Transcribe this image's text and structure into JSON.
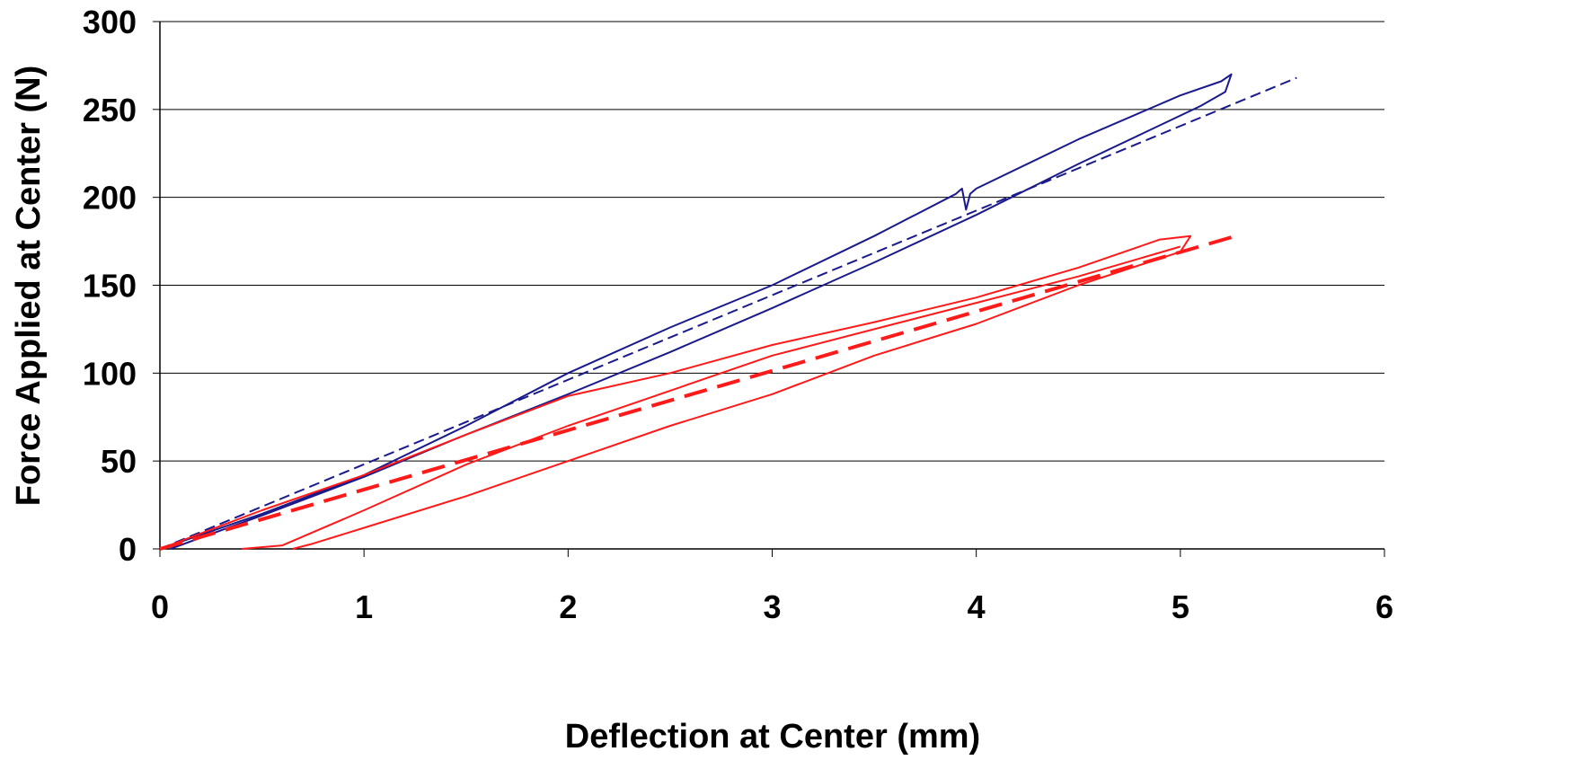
{
  "chart_data": {
    "type": "line",
    "title": "",
    "xlabel": "Deflection at Center (mm)",
    "ylabel": "Force Applied at Center (N)",
    "xlim": [
      0,
      6
    ],
    "ylim": [
      0,
      300
    ],
    "x_ticks": [
      "0",
      "1",
      "2",
      "3",
      "4",
      "5",
      "6"
    ],
    "y_ticks": [
      "0",
      "50",
      "100",
      "150",
      "200",
      "250",
      "300"
    ],
    "grid": "horizontal",
    "legend": "none",
    "series": [
      {
        "color": "#1a1a8c",
        "style": "solid",
        "x": [
          0,
          0.5,
          1.0,
          1.5,
          2.0,
          2.5,
          3.0,
          3.5,
          3.9,
          3.93,
          3.95,
          3.97,
          4.0,
          4.5,
          5.0,
          5.2,
          5.25,
          5.22,
          5.1,
          4.5,
          4.0,
          3.5,
          3.0,
          2.5,
          2.0,
          1.5,
          1.0,
          0.5,
          0.05
        ],
        "y": [
          0,
          20,
          42,
          70,
          100,
          126,
          150,
          178,
          202,
          205,
          193,
          202,
          205,
          233,
          258,
          266,
          270,
          260,
          252,
          219,
          190,
          163,
          137,
          112,
          88,
          65,
          41,
          19,
          0
        ]
      },
      {
        "color": "#1a1a8c",
        "style": "dashed",
        "x": [
          0,
          5.57
        ],
        "y": [
          0,
          268
        ]
      },
      {
        "color": "#ff1a1a",
        "style": "solid",
        "x": [
          0,
          0.5,
          1.0,
          1.5,
          2.0,
          2.5,
          3.0,
          3.5,
          4.0,
          4.5,
          4.9,
          5.05,
          5.0,
          4.5,
          4.0,
          3.5,
          3.0,
          2.5,
          2.0,
          1.5,
          1.0,
          0.75,
          0.65
        ],
        "y": [
          0,
          22,
          42,
          65,
          87,
          100,
          116,
          129,
          143,
          160,
          176,
          178,
          169,
          150,
          128,
          110,
          88,
          70,
          50,
          30,
          12,
          3,
          0
        ]
      },
      {
        "color": "#ff1a1a",
        "style": "solid",
        "x": [
          0.4,
          0.6,
          1.0,
          1.5,
          2.0,
          2.5,
          3.0,
          3.5,
          4.0,
          4.5,
          5.0
        ],
        "y": [
          0,
          2,
          22,
          48,
          70,
          90,
          110,
          125,
          140,
          155,
          172
        ]
      },
      {
        "color": "#ff1a1a",
        "style": "dashed",
        "x": [
          0,
          5.3
        ],
        "y": [
          0,
          179
        ]
      }
    ]
  }
}
